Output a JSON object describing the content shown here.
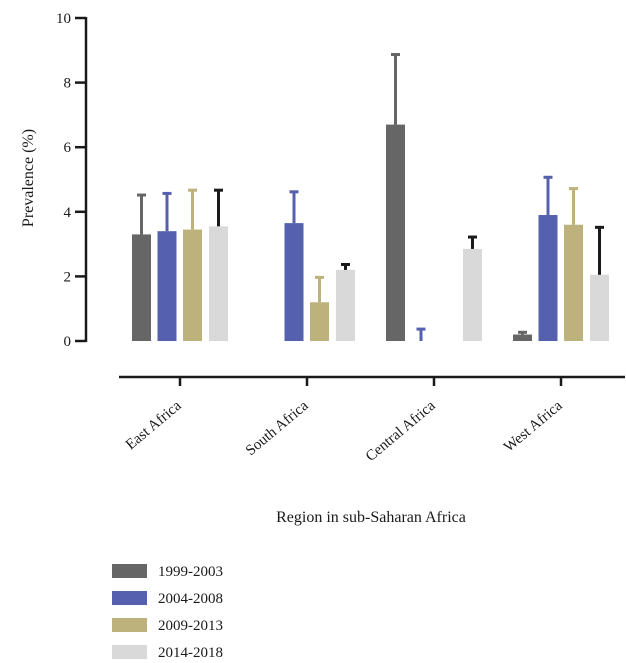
{
  "chart_data": {
    "type": "bar",
    "title": "",
    "xlabel": "Region in sub-Saharan Africa",
    "ylabel": "Prevalence (%)",
    "ylim": [
      0,
      10
    ],
    "yticks": [
      0,
      2,
      4,
      6,
      8,
      10
    ],
    "grid": false,
    "legend_position": "bottom-left",
    "categories": [
      "East Africa",
      "South Africa",
      "Central Africa",
      "West Africa"
    ],
    "series": [
      {
        "name": "1999-2003",
        "color": "#666666",
        "values": [
          3.3,
          null,
          6.7,
          0.2
        ],
        "errors": [
          1.25,
          null,
          2.2,
          0.1
        ]
      },
      {
        "name": "2004-2008",
        "color": "#5560ae",
        "values": [
          3.4,
          3.65,
          0,
          3.9
        ],
        "errors": [
          1.2,
          1.0,
          0.4,
          1.2
        ]
      },
      {
        "name": "2009-2013",
        "color": "#bdb27b",
        "values": [
          3.45,
          1.2,
          null,
          3.6
        ],
        "errors": [
          1.25,
          0.8,
          null,
          1.15
        ]
      },
      {
        "name": "2014-2018",
        "color": "#d9d9d9",
        "values": [
          3.55,
          2.2,
          2.85,
          2.05
        ],
        "errors": [
          1.15,
          0.2,
          0.4,
          1.5
        ],
        "error_color": "#1a1a1a"
      }
    ]
  }
}
